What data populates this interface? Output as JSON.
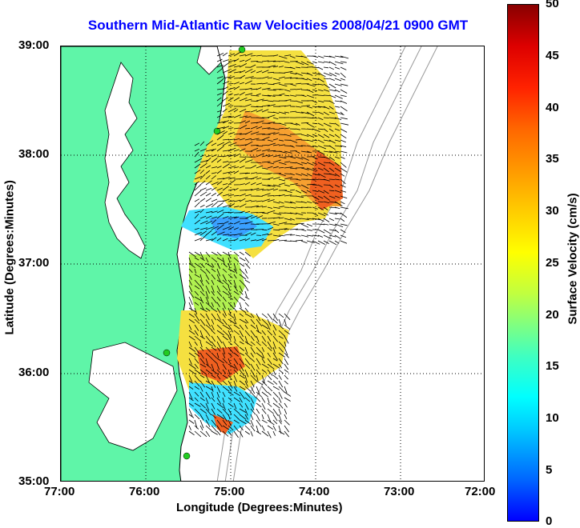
{
  "title": "Southern Mid-Atlantic Raw Velocities 2008/04/21 0900 GMT",
  "xlabel": "Longitude (Degrees:Minutes)",
  "ylabel": "Latitude (Degrees:Minutes)",
  "x_ticks": [
    "77:00",
    "76:00",
    "75:00",
    "74:00",
    "73:00",
    "72:00"
  ],
  "y_ticks": [
    "39:00",
    "38:00",
    "37:00",
    "36:00",
    "35:00"
  ],
  "colorbar": {
    "title": "Surface Velocity (cm/s)",
    "ticks": [
      "50",
      "45",
      "40",
      "35",
      "30",
      "25",
      "20",
      "15",
      "10",
      "5",
      "0"
    ],
    "range": [
      0,
      50
    ]
  },
  "colors": {
    "land": "#5ff5a8",
    "title": "#0000ff",
    "grid": "#000000",
    "coast": "#000000",
    "bathymetry": "#999999",
    "station": "#22cc22"
  },
  "extent": {
    "lon": [
      -77,
      -72
    ],
    "lat": [
      35,
      39
    ]
  }
}
